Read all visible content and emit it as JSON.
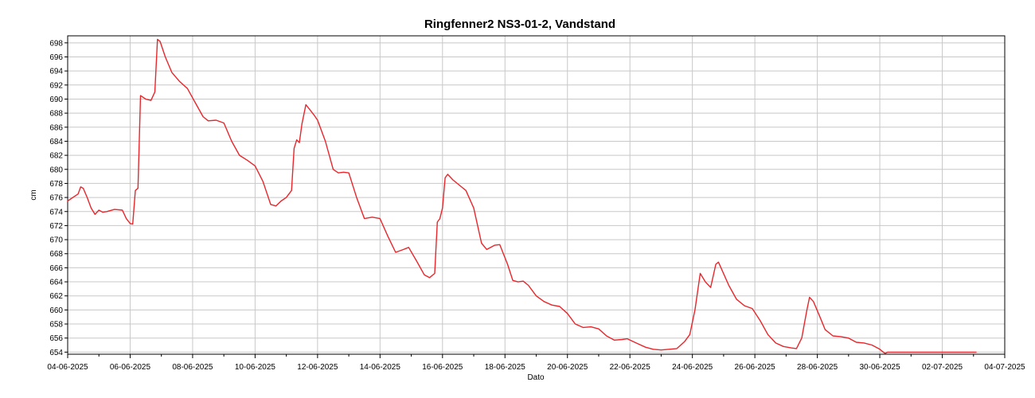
{
  "chart_data": {
    "type": "line",
    "title": "Ringfenner2 NS3-01-2, Vandstand",
    "xlabel": "Dato",
    "ylabel": "cm",
    "x_ticks": [
      "04-06-2025",
      "06-06-2025",
      "08-06-2025",
      "10-06-2025",
      "12-06-2025",
      "14-06-2025",
      "16-06-2025",
      "18-06-2025",
      "20-06-2025",
      "22-06-2025",
      "24-06-2025",
      "26-06-2025",
      "28-06-2025",
      "30-06-2025",
      "02-07-2025",
      "04-07-2025"
    ],
    "y_ticks": [
      654,
      656,
      658,
      660,
      662,
      664,
      666,
      668,
      670,
      672,
      674,
      676,
      678,
      680,
      682,
      684,
      686,
      688,
      690,
      692,
      694,
      696,
      698
    ],
    "xlim": [
      "04-06-2025 00:00",
      "04-07-2025 00:00"
    ],
    "ylim": [
      653.7,
      699.0
    ],
    "grid": true,
    "line_color": "#e8262b",
    "series": [
      {
        "name": "",
        "points": [
          [
            "04-06-2025 00:00",
            675.5
          ],
          [
            "04-06-2025 04:00",
            676.0
          ],
          [
            "04-06-2025 08:00",
            676.5
          ],
          [
            "04-06-2025 10:00",
            677.5
          ],
          [
            "04-06-2025 12:00",
            677.3
          ],
          [
            "04-06-2025 15:00",
            676.0
          ],
          [
            "04-06-2025 18:00",
            674.5
          ],
          [
            "04-06-2025 21:00",
            673.6
          ],
          [
            "05-06-2025 00:00",
            674.2
          ],
          [
            "05-06-2025 03:00",
            673.9
          ],
          [
            "05-06-2025 06:00",
            674.0
          ],
          [
            "05-06-2025 12:00",
            674.3
          ],
          [
            "05-06-2025 18:00",
            674.2
          ],
          [
            "05-06-2025 21:00",
            673.0
          ],
          [
            "06-06-2025 00:00",
            672.3
          ],
          [
            "06-06-2025 02:00",
            672.2
          ],
          [
            "06-06-2025 04:00",
            677.0
          ],
          [
            "06-06-2025 06:00",
            677.3
          ],
          [
            "06-06-2025 08:00",
            690.5
          ],
          [
            "06-06-2025 12:00",
            690.0
          ],
          [
            "06-06-2025 16:00",
            689.8
          ],
          [
            "06-06-2025 19:00",
            691.0
          ],
          [
            "06-06-2025 21:00",
            698.5
          ],
          [
            "06-06-2025 23:00",
            698.2
          ],
          [
            "07-06-2025 03:00",
            696.0
          ],
          [
            "07-06-2025 08:00",
            693.8
          ],
          [
            "07-06-2025 14:00",
            692.5
          ],
          [
            "07-06-2025 20:00",
            691.5
          ],
          [
            "08-06-2025 02:00",
            689.5
          ],
          [
            "08-06-2025 08:00",
            687.5
          ],
          [
            "08-06-2025 12:00",
            686.9
          ],
          [
            "08-06-2025 18:00",
            687.0
          ],
          [
            "09-06-2025 00:00",
            686.6
          ],
          [
            "09-06-2025 06:00",
            684.0
          ],
          [
            "09-06-2025 12:00",
            682.0
          ],
          [
            "09-06-2025 18:00",
            681.3
          ],
          [
            "10-06-2025 00:00",
            680.5
          ],
          [
            "10-06-2025 06:00",
            678.3
          ],
          [
            "10-06-2025 12:00",
            675.0
          ],
          [
            "10-06-2025 16:00",
            674.8
          ],
          [
            "10-06-2025 20:00",
            675.5
          ],
          [
            "11-06-2025 00:00",
            676.0
          ],
          [
            "11-06-2025 04:00",
            677.0
          ],
          [
            "11-06-2025 06:00",
            683.0
          ],
          [
            "11-06-2025 08:00",
            684.2
          ],
          [
            "11-06-2025 10:00",
            683.8
          ],
          [
            "11-06-2025 12:00",
            686.5
          ],
          [
            "11-06-2025 15:00",
            689.2
          ],
          [
            "11-06-2025 18:00",
            688.5
          ],
          [
            "11-06-2025 21:00",
            687.8
          ],
          [
            "12-06-2025 00:00",
            687.0
          ],
          [
            "12-06-2025 06:00",
            684.0
          ],
          [
            "12-06-2025 12:00",
            680.0
          ],
          [
            "12-06-2025 16:00",
            679.5
          ],
          [
            "12-06-2025 20:00",
            679.6
          ],
          [
            "13-06-2025 00:00",
            679.5
          ],
          [
            "13-06-2025 06:00",
            676.0
          ],
          [
            "13-06-2025 12:00",
            673.0
          ],
          [
            "13-06-2025 18:00",
            673.2
          ],
          [
            "14-06-2025 00:00",
            673.0
          ],
          [
            "14-06-2025 06:00",
            670.5
          ],
          [
            "14-06-2025 12:00",
            668.2
          ],
          [
            "14-06-2025 18:00",
            668.6
          ],
          [
            "14-06-2025 22:00",
            668.9
          ],
          [
            "15-06-2025 04:00",
            667.0
          ],
          [
            "15-06-2025 10:00",
            665.0
          ],
          [
            "15-06-2025 14:00",
            664.6
          ],
          [
            "15-06-2025 18:00",
            665.2
          ],
          [
            "15-06-2025 20:00",
            672.5
          ],
          [
            "15-06-2025 22:00",
            673.0
          ],
          [
            "16-06-2025 00:00",
            674.5
          ],
          [
            "16-06-2025 02:00",
            678.8
          ],
          [
            "16-06-2025 04:00",
            679.3
          ],
          [
            "16-06-2025 08:00",
            678.5
          ],
          [
            "16-06-2025 14:00",
            677.6
          ],
          [
            "16-06-2025 18:00",
            677.0
          ],
          [
            "17-06-2025 00:00",
            674.5
          ],
          [
            "17-06-2025 06:00",
            669.5
          ],
          [
            "17-06-2025 10:00",
            668.6
          ],
          [
            "17-06-2025 16:00",
            669.2
          ],
          [
            "17-06-2025 20:00",
            669.3
          ],
          [
            "18-06-2025 02:00",
            666.5
          ],
          [
            "18-06-2025 06:00",
            664.2
          ],
          [
            "18-06-2025 10:00",
            664.0
          ],
          [
            "18-06-2025 14:00",
            664.1
          ],
          [
            "18-06-2025 18:00",
            663.5
          ],
          [
            "19-06-2025 00:00",
            662.0
          ],
          [
            "19-06-2025 06:00",
            661.2
          ],
          [
            "19-06-2025 12:00",
            660.7
          ],
          [
            "19-06-2025 18:00",
            660.5
          ],
          [
            "20-06-2025 00:00",
            659.5
          ],
          [
            "20-06-2025 06:00",
            658.0
          ],
          [
            "20-06-2025 12:00",
            657.5
          ],
          [
            "20-06-2025 18:00",
            657.6
          ],
          [
            "21-06-2025 00:00",
            657.3
          ],
          [
            "21-06-2025 06:00",
            656.3
          ],
          [
            "21-06-2025 12:00",
            655.7
          ],
          [
            "21-06-2025 18:00",
            655.8
          ],
          [
            "21-06-2025 22:00",
            655.9
          ],
          [
            "22-06-2025 06:00",
            655.2
          ],
          [
            "22-06-2025 12:00",
            654.7
          ],
          [
            "22-06-2025 18:00",
            654.4
          ],
          [
            "23-06-2025 00:00",
            654.3
          ],
          [
            "23-06-2025 06:00",
            654.4
          ],
          [
            "23-06-2025 12:00",
            654.5
          ],
          [
            "23-06-2025 18:00",
            655.5
          ],
          [
            "23-06-2025 22:00",
            656.5
          ],
          [
            "24-06-2025 02:00",
            660.0
          ],
          [
            "24-06-2025 06:00",
            665.2
          ],
          [
            "24-06-2025 10:00",
            664.0
          ],
          [
            "24-06-2025 14:00",
            663.2
          ],
          [
            "24-06-2025 18:00",
            666.5
          ],
          [
            "24-06-2025 20:00",
            666.8
          ],
          [
            "24-06-2025 22:00",
            666.0
          ],
          [
            "25-06-2025 04:00",
            663.5
          ],
          [
            "25-06-2025 10:00",
            661.5
          ],
          [
            "25-06-2025 16:00",
            660.6
          ],
          [
            "25-06-2025 22:00",
            660.2
          ],
          [
            "26-06-2025 04:00",
            658.5
          ],
          [
            "26-06-2025 10:00",
            656.5
          ],
          [
            "26-06-2025 16:00",
            655.3
          ],
          [
            "26-06-2025 22:00",
            654.8
          ],
          [
            "27-06-2025 04:00",
            654.6
          ],
          [
            "27-06-2025 08:00",
            654.5
          ],
          [
            "27-06-2025 12:00",
            656.0
          ],
          [
            "27-06-2025 16:00",
            660.0
          ],
          [
            "27-06-2025 18:00",
            661.8
          ],
          [
            "27-06-2025 21:00",
            661.2
          ],
          [
            "28-06-2025 02:00",
            659.0
          ],
          [
            "28-06-2025 06:00",
            657.2
          ],
          [
            "28-06-2025 12:00",
            656.3
          ],
          [
            "28-06-2025 18:00",
            656.2
          ],
          [
            "29-06-2025 00:00",
            656.0
          ],
          [
            "29-06-2025 06:00",
            655.4
          ],
          [
            "29-06-2025 12:00",
            655.3
          ],
          [
            "29-06-2025 18:00",
            655.0
          ],
          [
            "30-06-2025 00:00",
            654.4
          ],
          [
            "30-06-2025 04:00",
            653.8
          ],
          [
            "30-06-2025 06:00",
            654.0
          ],
          [
            "02-07-2025 00:00",
            654.0
          ],
          [
            "03-07-2025 02:00",
            654.0
          ]
        ]
      }
    ]
  }
}
